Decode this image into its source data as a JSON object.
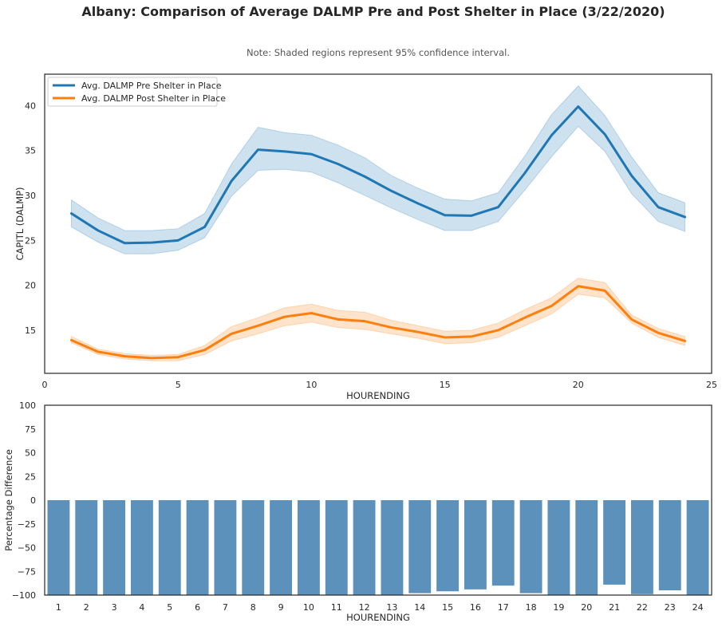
{
  "chart_data": [
    {
      "type": "line",
      "title": "Albany: Comparison of Average DALMP Pre and Post Shelter in Place (3/22/2020)",
      "subtitle": "Note: Shaded regions represent 95% confidence interval.",
      "xlabel": "HOURENDING",
      "ylabel": "CAPITL (DALMP)",
      "xlim": [
        0,
        25
      ],
      "ylim": [
        10.2,
        43.5
      ],
      "xticks": [
        0,
        5,
        10,
        15,
        20,
        25
      ],
      "yticks": [
        15,
        20,
        25,
        30,
        35,
        40
      ],
      "grid": false,
      "legend": "top-left",
      "x": [
        1,
        2,
        3,
        4,
        5,
        6,
        7,
        8,
        9,
        10,
        11,
        12,
        13,
        14,
        15,
        16,
        17,
        18,
        19,
        20,
        21,
        22,
        23,
        24
      ],
      "series": [
        {
          "name": "Avg. DALMP Pre Shelter in Place",
          "color": "#1f77b4",
          "values": [
            28.0,
            26.1,
            24.7,
            24.75,
            25.0,
            26.5,
            31.6,
            35.1,
            34.9,
            34.6,
            33.5,
            32.1,
            30.5,
            29.1,
            27.8,
            27.75,
            28.7,
            32.5,
            36.7,
            39.9,
            36.8,
            32.2,
            28.7,
            27.6
          ],
          "ci_low": [
            26.5,
            24.8,
            23.5,
            23.5,
            23.9,
            25.3,
            29.9,
            32.8,
            32.9,
            32.6,
            31.4,
            30.0,
            28.6,
            27.3,
            26.1,
            26.1,
            27.1,
            30.6,
            34.3,
            37.7,
            34.9,
            30.2,
            27.1,
            26.0
          ],
          "ci_high": [
            29.5,
            27.5,
            26.1,
            26.1,
            26.3,
            28.0,
            33.5,
            37.6,
            37.0,
            36.7,
            35.6,
            34.2,
            32.2,
            30.8,
            29.6,
            29.4,
            30.3,
            34.4,
            39.0,
            42.2,
            38.9,
            34.3,
            30.3,
            29.2
          ]
        },
        {
          "name": "Avg. DALMP Post Shelter in Place",
          "color": "#ff7f0e",
          "values": [
            13.9,
            12.6,
            12.1,
            11.9,
            12.0,
            12.8,
            14.6,
            15.5,
            16.5,
            16.9,
            16.2,
            16.0,
            15.3,
            14.8,
            14.2,
            14.3,
            15.0,
            16.4,
            17.7,
            19.9,
            19.4,
            16.2,
            14.7,
            13.8
          ],
          "ci_low": [
            13.6,
            12.3,
            11.8,
            11.6,
            11.6,
            12.3,
            13.8,
            14.6,
            15.5,
            15.9,
            15.3,
            15.1,
            14.6,
            14.1,
            13.5,
            13.6,
            14.2,
            15.5,
            16.8,
            19.0,
            18.6,
            15.8,
            14.2,
            13.3
          ],
          "ci_high": [
            14.3,
            12.9,
            12.4,
            12.2,
            12.3,
            13.3,
            15.4,
            16.4,
            17.5,
            17.9,
            17.2,
            17.0,
            16.1,
            15.5,
            14.9,
            15.0,
            15.8,
            17.3,
            18.6,
            20.8,
            20.3,
            16.7,
            15.2,
            14.3
          ]
        }
      ]
    },
    {
      "type": "bar",
      "xlabel": "HOURENDING",
      "ylabel": "Percentage Difference",
      "ylim": [
        -100,
        100
      ],
      "yticks": [
        -100,
        -75,
        -50,
        -25,
        0,
        25,
        50,
        75,
        100
      ],
      "grid": false,
      "color": "#5b91bb",
      "categories": [
        "1",
        "2",
        "3",
        "4",
        "5",
        "6",
        "7",
        "8",
        "9",
        "10",
        "11",
        "12",
        "13",
        "14",
        "15",
        "16",
        "17",
        "18",
        "19",
        "20",
        "21",
        "22",
        "23",
        "24"
      ],
      "values": [
        -100,
        -100,
        -100,
        -100,
        -100,
        -100,
        -100,
        -100,
        -100,
        -100,
        -100,
        -100,
        -100,
        -98,
        -96,
        -94,
        -90,
        -98,
        -100,
        -100,
        -89,
        -99,
        -95,
        -100
      ]
    }
  ]
}
